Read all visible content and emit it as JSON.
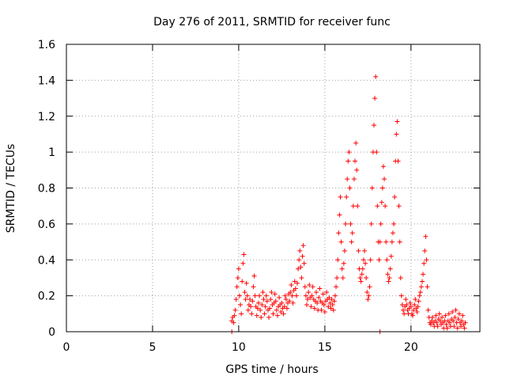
{
  "chart_data": {
    "type": "scatter",
    "title": "Day 276 of 2011, SRMTID for receiver func",
    "xlabel": "GPS time / hours",
    "ylabel": "SRMTID / TECUs",
    "xlim": [
      0,
      24
    ],
    "ylim": [
      0,
      1.6
    ],
    "xticks": [
      0,
      5,
      10,
      15,
      20
    ],
    "yticks": [
      0,
      0.2,
      0.4,
      0.6,
      0.8,
      1,
      1.2,
      1.4,
      1.6
    ],
    "ytick_labels": [
      "0",
      "0.2",
      "0.4",
      "0.6",
      "0.8",
      "1",
      "1.2",
      "1.4",
      "1.6"
    ],
    "grid": true,
    "marker": "+",
    "color": "#ff0000",
    "series": [
      {
        "name": "SRMTID",
        "points": [
          [
            9.6,
            0.06
          ],
          [
            9.65,
            0.08
          ],
          [
            9.7,
            0.05
          ],
          [
            9.75,
            0.09
          ],
          [
            9.8,
            0.12
          ],
          [
            9.85,
            0.18
          ],
          [
            9.9,
            0.25
          ],
          [
            9.95,
            0.3
          ],
          [
            10.0,
            0.35
          ],
          [
            10.05,
            0.2
          ],
          [
            10.1,
            0.15
          ],
          [
            10.15,
            0.1
          ],
          [
            10.2,
            0.28
          ],
          [
            10.25,
            0.38
          ],
          [
            10.3,
            0.43
          ],
          [
            10.35,
            0.22
          ],
          [
            10.4,
            0.18
          ],
          [
            10.45,
            0.27
          ],
          [
            10.5,
            0.2
          ],
          [
            10.55,
            0.12
          ],
          [
            10.6,
            0.15
          ],
          [
            10.65,
            0.18
          ],
          [
            10.7,
            0.14
          ],
          [
            10.75,
            0.1
          ],
          [
            10.8,
            0.17
          ],
          [
            10.85,
            0.25
          ],
          [
            10.9,
            0.31
          ],
          [
            10.95,
            0.2
          ],
          [
            11.0,
            0.14
          ],
          [
            11.05,
            0.09
          ],
          [
            11.1,
            0.13
          ],
          [
            11.15,
            0.16
          ],
          [
            11.2,
            0.2
          ],
          [
            11.25,
            0.12
          ],
          [
            11.3,
            0.08
          ],
          [
            11.35,
            0.15
          ],
          [
            11.4,
            0.22
          ],
          [
            11.45,
            0.18
          ],
          [
            11.5,
            0.1
          ],
          [
            11.55,
            0.14
          ],
          [
            11.6,
            0.2
          ],
          [
            11.65,
            0.17
          ],
          [
            11.7,
            0.12
          ],
          [
            11.75,
            0.08
          ],
          [
            11.8,
            0.13
          ],
          [
            11.85,
            0.18
          ],
          [
            11.9,
            0.22
          ],
          [
            11.95,
            0.15
          ],
          [
            12.0,
            0.1
          ],
          [
            12.05,
            0.16
          ],
          [
            12.1,
            0.21
          ],
          [
            12.15,
            0.17
          ],
          [
            12.2,
            0.12
          ],
          [
            12.25,
            0.09
          ],
          [
            12.3,
            0.14
          ],
          [
            12.35,
            0.19
          ],
          [
            12.4,
            0.15
          ],
          [
            12.45,
            0.11
          ],
          [
            12.5,
            0.16
          ],
          [
            12.55,
            0.13
          ],
          [
            12.6,
            0.1
          ],
          [
            12.65,
            0.14
          ],
          [
            12.7,
            0.2
          ],
          [
            12.75,
            0.18
          ],
          [
            12.8,
            0.13
          ],
          [
            12.85,
            0.16
          ],
          [
            12.9,
            0.21
          ],
          [
            12.95,
            0.17
          ],
          [
            13.0,
            0.22
          ],
          [
            13.05,
            0.26
          ],
          [
            13.1,
            0.2
          ],
          [
            13.15,
            0.16
          ],
          [
            13.2,
            0.23
          ],
          [
            13.25,
            0.28
          ],
          [
            13.3,
            0.24
          ],
          [
            13.35,
            0.2
          ],
          [
            13.4,
            0.27
          ],
          [
            13.45,
            0.35
          ],
          [
            13.5,
            0.4
          ],
          [
            13.55,
            0.45
          ],
          [
            13.6,
            0.36
          ],
          [
            13.65,
            0.3
          ],
          [
            13.7,
            0.42
          ],
          [
            13.75,
            0.48
          ],
          [
            13.8,
            0.38
          ],
          [
            13.85,
            0.25
          ],
          [
            13.9,
            0.2
          ],
          [
            13.95,
            0.15
          ],
          [
            14.0,
            0.18
          ],
          [
            14.05,
            0.22
          ],
          [
            14.1,
            0.26
          ],
          [
            14.15,
            0.19
          ],
          [
            14.2,
            0.14
          ],
          [
            14.25,
            0.2
          ],
          [
            14.3,
            0.25
          ],
          [
            14.35,
            0.18
          ],
          [
            14.4,
            0.13
          ],
          [
            14.45,
            0.17
          ],
          [
            14.5,
            0.22
          ],
          [
            14.55,
            0.16
          ],
          [
            14.6,
            0.12
          ],
          [
            14.65,
            0.19
          ],
          [
            14.7,
            0.24
          ],
          [
            14.75,
            0.17
          ],
          [
            14.8,
            0.12
          ],
          [
            14.85,
            0.16
          ],
          [
            14.9,
            0.21
          ],
          [
            14.95,
            0.15
          ],
          [
            15.0,
            0.11
          ],
          [
            15.05,
            0.17
          ],
          [
            15.1,
            0.22
          ],
          [
            15.15,
            0.18
          ],
          [
            15.2,
            0.14
          ],
          [
            15.25,
            0.19
          ],
          [
            15.3,
            0.16
          ],
          [
            15.35,
            0.13
          ],
          [
            15.4,
            0.18
          ],
          [
            15.45,
            0.15
          ],
          [
            15.5,
            0.12
          ],
          [
            15.55,
            0.17
          ],
          [
            15.6,
            0.2
          ],
          [
            15.65,
            0.25
          ],
          [
            15.7,
            0.3
          ],
          [
            15.75,
            0.4
          ],
          [
            15.8,
            0.55
          ],
          [
            15.85,
            0.65
          ],
          [
            15.9,
            0.75
          ],
          [
            15.95,
            0.5
          ],
          [
            16.0,
            0.35
          ],
          [
            16.05,
            0.3
          ],
          [
            16.1,
            0.38
          ],
          [
            16.15,
            0.45
          ],
          [
            16.2,
            0.6
          ],
          [
            16.25,
            0.75
          ],
          [
            16.3,
            0.85
          ],
          [
            16.35,
            0.95
          ],
          [
            16.4,
            1.0
          ],
          [
            16.45,
            0.8
          ],
          [
            16.5,
            0.6
          ],
          [
            16.55,
            0.5
          ],
          [
            16.6,
            0.55
          ],
          [
            16.65,
            0.7
          ],
          [
            16.7,
            0.85
          ],
          [
            16.75,
            0.95
          ],
          [
            16.8,
            1.05
          ],
          [
            16.85,
            0.9
          ],
          [
            16.9,
            0.7
          ],
          [
            16.95,
            0.45
          ],
          [
            17.0,
            0.35
          ],
          [
            17.05,
            0.3
          ],
          [
            17.1,
            0.28
          ],
          [
            17.15,
            0.32
          ],
          [
            17.2,
            0.35
          ],
          [
            17.25,
            0.4
          ],
          [
            17.3,
            0.45
          ],
          [
            17.35,
            0.38
          ],
          [
            17.4,
            0.3
          ],
          [
            17.45,
            0.22
          ],
          [
            17.5,
            0.18
          ],
          [
            17.55,
            0.2
          ],
          [
            17.6,
            0.25
          ],
          [
            17.65,
            0.4
          ],
          [
            17.7,
            0.6
          ],
          [
            17.75,
            0.8
          ],
          [
            17.8,
            1.0
          ],
          [
            17.85,
            1.15
          ],
          [
            17.9,
            1.3
          ],
          [
            17.95,
            1.42
          ],
          [
            18.0,
            1.0
          ],
          [
            18.05,
            0.7
          ],
          [
            18.1,
            0.5
          ],
          [
            18.15,
            0.4
          ],
          [
            18.2,
            0.5
          ],
          [
            18.25,
            0.6
          ],
          [
            18.3,
            0.72
          ],
          [
            18.35,
            0.8
          ],
          [
            18.4,
            0.92
          ],
          [
            18.45,
            0.85
          ],
          [
            18.5,
            0.7
          ],
          [
            18.55,
            0.5
          ],
          [
            18.6,
            0.4
          ],
          [
            18.65,
            0.32
          ],
          [
            18.7,
            0.28
          ],
          [
            18.75,
            0.3
          ],
          [
            18.8,
            0.35
          ],
          [
            18.85,
            0.42
          ],
          [
            18.9,
            0.5
          ],
          [
            18.95,
            0.55
          ],
          [
            19.0,
            0.6
          ],
          [
            19.05,
            0.75
          ],
          [
            19.1,
            0.95
          ],
          [
            19.15,
            1.1
          ],
          [
            19.2,
            1.17
          ],
          [
            19.25,
            0.95
          ],
          [
            19.3,
            0.7
          ],
          [
            19.35,
            0.5
          ],
          [
            19.4,
            0.3
          ],
          [
            19.45,
            0.2
          ],
          [
            19.5,
            0.15
          ],
          [
            19.55,
            0.12
          ],
          [
            19.6,
            0.1
          ],
          [
            19.65,
            0.14
          ],
          [
            19.7,
            0.18
          ],
          [
            19.75,
            0.15
          ],
          [
            19.8,
            0.12
          ],
          [
            19.85,
            0.1
          ],
          [
            19.9,
            0.13
          ],
          [
            19.95,
            0.16
          ],
          [
            20.0,
            0.14
          ],
          [
            20.05,
            0.1
          ],
          [
            20.1,
            0.09
          ],
          [
            20.15,
            0.12
          ],
          [
            20.2,
            0.15
          ],
          [
            20.25,
            0.18
          ],
          [
            20.3,
            0.13
          ],
          [
            20.35,
            0.11
          ],
          [
            20.4,
            0.14
          ],
          [
            20.45,
            0.17
          ],
          [
            20.5,
            0.2
          ],
          [
            20.55,
            0.22
          ],
          [
            20.6,
            0.25
          ],
          [
            20.65,
            0.28
          ],
          [
            20.7,
            0.32
          ],
          [
            20.75,
            0.38
          ],
          [
            20.8,
            0.45
          ],
          [
            20.85,
            0.53
          ],
          [
            20.9,
            0.4
          ],
          [
            20.95,
            0.25
          ],
          [
            21.0,
            0.12
          ],
          [
            21.05,
            0.08
          ],
          [
            21.1,
            0.05
          ],
          [
            21.15,
            0.04
          ],
          [
            21.2,
            0.06
          ],
          [
            21.25,
            0.08
          ],
          [
            21.3,
            0.05
          ],
          [
            21.35,
            0.03
          ],
          [
            21.4,
            0.06
          ],
          [
            21.45,
            0.09
          ],
          [
            21.5,
            0.05
          ],
          [
            21.55,
            0.03
          ],
          [
            21.6,
            0.07
          ],
          [
            21.65,
            0.1
          ],
          [
            21.7,
            0.06
          ],
          [
            21.75,
            0.04
          ],
          [
            21.8,
            0.08
          ],
          [
            21.85,
            0.05
          ],
          [
            21.9,
            0.02
          ],
          [
            21.95,
            0.06
          ],
          [
            22.0,
            0.09
          ],
          [
            22.05,
            0.04
          ],
          [
            22.1,
            0.02
          ],
          [
            22.15,
            0.06
          ],
          [
            22.2,
            0.1
          ],
          [
            22.25,
            0.05
          ],
          [
            22.3,
            0.03
          ],
          [
            22.35,
            0.07
          ],
          [
            22.4,
            0.11
          ],
          [
            22.45,
            0.06
          ],
          [
            22.5,
            0.03
          ],
          [
            22.55,
            0.08
          ],
          [
            22.6,
            0.12
          ],
          [
            22.65,
            0.05
          ],
          [
            22.7,
            0.02
          ],
          [
            22.75,
            0.07
          ],
          [
            22.8,
            0.1
          ],
          [
            22.85,
            0.05
          ],
          [
            22.9,
            0.03
          ],
          [
            22.95,
            0.06
          ],
          [
            23.0,
            0.09
          ],
          [
            23.05,
            0.04
          ],
          [
            23.1,
            0.02
          ],
          [
            23.15,
            0.05
          ],
          [
            9.6,
            0.0
          ],
          [
            18.2,
            0.0
          ]
        ]
      }
    ]
  }
}
